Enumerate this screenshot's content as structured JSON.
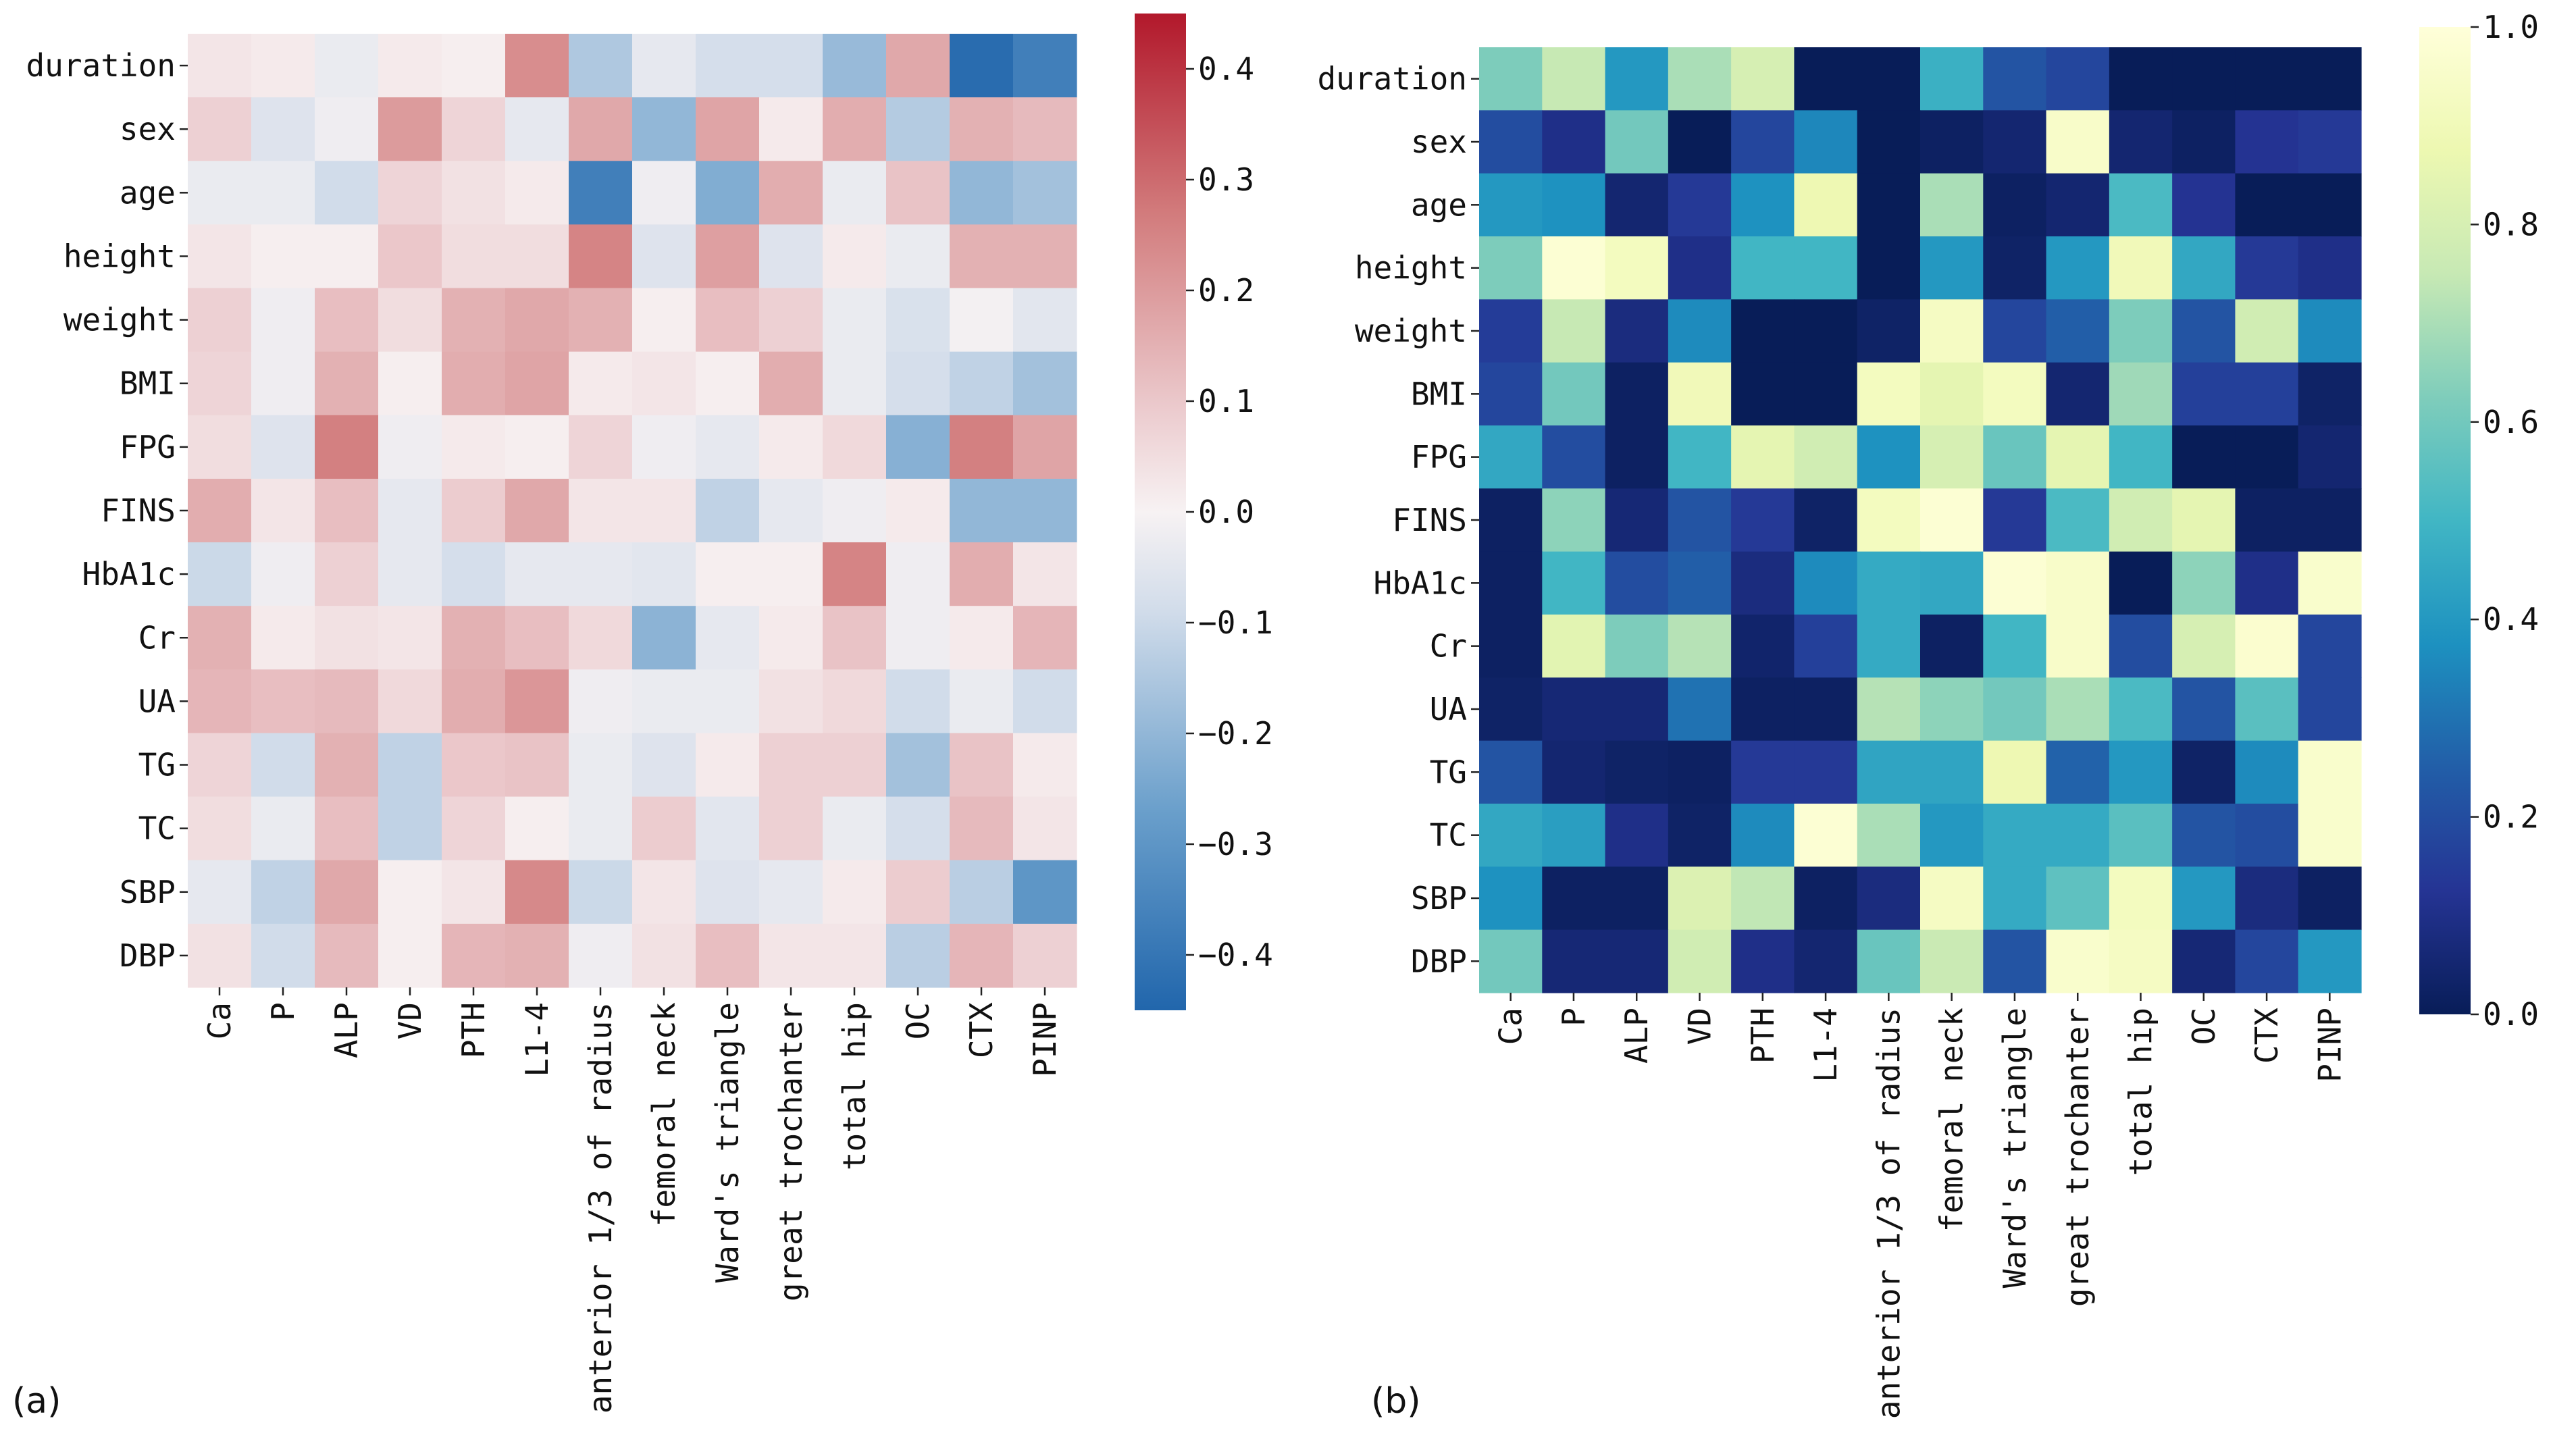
{
  "chart_data": [
    {
      "type": "heatmap",
      "panel_label": "(a)",
      "colormap": "RdBu_r",
      "colorbar": {
        "range": [
          -0.45,
          0.45
        ],
        "ticks": [
          0.4,
          0.3,
          0.2,
          0.1,
          0.0,
          -0.1,
          -0.2,
          -0.3,
          -0.4
        ],
        "tick_labels": [
          "0.4",
          "0.3",
          "0.2",
          "0.1",
          "0.0",
          "−0.1",
          "−0.2",
          "−0.3",
          "−0.4"
        ]
      },
      "rows": [
        "duration",
        "sex",
        "age",
        "height",
        "weight",
        "BMI",
        "FPG",
        "FINS",
        "HbA1c",
        "Cr",
        "UA",
        "TG",
        "TC",
        "SBP",
        "DBP"
      ],
      "cols": [
        "Ca",
        "P",
        "ALP",
        "VD",
        "PTH",
        "L1-4",
        "anterior 1/3 of radius",
        "femoral neck",
        "Ward's triangle",
        "great trochanter",
        "total hip",
        "OC",
        "CTX",
        "PINP"
      ],
      "values": [
        [
          0.03,
          0.02,
          -0.03,
          0.02,
          0.01,
          0.23,
          -0.15,
          -0.04,
          -0.08,
          -0.08,
          -0.19,
          0.17,
          -0.43,
          -0.37
        ],
        [
          0.08,
          -0.06,
          -0.02,
          0.2,
          0.07,
          -0.04,
          0.17,
          -0.2,
          0.18,
          0.02,
          0.16,
          -0.14,
          0.15,
          0.13
        ],
        [
          -0.03,
          -0.03,
          -0.09,
          0.07,
          0.04,
          0.02,
          -0.37,
          -0.02,
          -0.23,
          0.16,
          -0.03,
          0.11,
          -0.2,
          -0.17
        ],
        [
          0.03,
          0.01,
          0.01,
          0.1,
          0.05,
          0.05,
          0.25,
          -0.06,
          0.19,
          -0.06,
          0.02,
          -0.03,
          0.15,
          0.15
        ],
        [
          0.08,
          -0.02,
          0.12,
          0.05,
          0.15,
          0.17,
          0.15,
          0.01,
          0.12,
          0.08,
          -0.03,
          -0.07,
          -0.01,
          -0.05
        ],
        [
          0.07,
          -0.02,
          0.15,
          0.01,
          0.16,
          0.18,
          0.02,
          0.03,
          0.01,
          0.16,
          -0.03,
          -0.08,
          -0.12,
          -0.17
        ],
        [
          0.05,
          -0.06,
          0.26,
          -0.02,
          0.02,
          0.01,
          0.07,
          -0.02,
          -0.04,
          0.02,
          0.06,
          -0.22,
          0.26,
          0.18
        ],
        [
          0.16,
          0.03,
          0.12,
          -0.04,
          0.09,
          0.17,
          0.03,
          0.03,
          -0.12,
          -0.04,
          -0.02,
          0.02,
          -0.2,
          -0.2
        ],
        [
          -0.1,
          -0.02,
          0.08,
          -0.04,
          -0.08,
          -0.04,
          -0.04,
          -0.05,
          0.01,
          0.01,
          0.25,
          -0.02,
          0.16,
          0.03
        ],
        [
          0.15,
          0.02,
          0.04,
          0.03,
          0.15,
          0.12,
          0.06,
          -0.21,
          -0.04,
          0.02,
          0.11,
          -0.02,
          0.02,
          0.14
        ],
        [
          0.14,
          0.12,
          0.13,
          0.06,
          0.16,
          0.21,
          -0.02,
          -0.03,
          -0.03,
          0.04,
          0.06,
          -0.09,
          -0.03,
          -0.09
        ],
        [
          0.07,
          -0.09,
          0.15,
          -0.12,
          0.1,
          0.11,
          -0.03,
          -0.06,
          0.02,
          0.08,
          0.08,
          -0.17,
          0.11,
          0.02
        ],
        [
          0.05,
          -0.03,
          0.12,
          -0.12,
          0.07,
          0.01,
          -0.03,
          0.09,
          -0.05,
          0.08,
          -0.03,
          -0.08,
          0.13,
          0.03
        ],
        [
          -0.04,
          -0.12,
          0.17,
          0.01,
          0.03,
          0.24,
          -0.1,
          0.03,
          -0.06,
          -0.04,
          0.02,
          0.09,
          -0.13,
          -0.3
        ],
        [
          0.04,
          -0.09,
          0.13,
          0.01,
          0.14,
          0.15,
          -0.02,
          0.04,
          0.12,
          0.03,
          0.03,
          -0.13,
          0.14,
          0.08
        ]
      ]
    },
    {
      "type": "heatmap",
      "panel_label": "(b)",
      "colormap": "YlGnBu_r",
      "colorbar": {
        "range": [
          0.0,
          1.0
        ],
        "ticks": [
          1.0,
          0.8,
          0.6,
          0.4,
          0.2,
          0.0
        ],
        "tick_labels": [
          "1.0",
          "0.8",
          "0.6",
          "0.4",
          "0.2",
          "0.0"
        ]
      },
      "rows": [
        "duration",
        "sex",
        "age",
        "height",
        "weight",
        "BMI",
        "FPG",
        "FINS",
        "HbA1c",
        "Cr",
        "UA",
        "TG",
        "TC",
        "SBP",
        "DBP"
      ],
      "cols": [
        "Ca",
        "P",
        "ALP",
        "VD",
        "PTH",
        "L1-4",
        "anterior 1/3 of radius",
        "femoral neck",
        "Ward's triangle",
        "great trochanter",
        "total hip",
        "OC",
        "CTX",
        "PINP"
      ],
      "values": [
        [
          0.62,
          0.75,
          0.4,
          0.7,
          0.8,
          0.0,
          0.0,
          0.48,
          0.22,
          0.18,
          0.0,
          0.0,
          0.0,
          0.0
        ],
        [
          0.2,
          0.1,
          0.6,
          0.0,
          0.18,
          0.35,
          0.0,
          0.02,
          0.05,
          0.95,
          0.05,
          0.02,
          0.12,
          0.14
        ],
        [
          0.4,
          0.38,
          0.05,
          0.14,
          0.38,
          0.88,
          0.0,
          0.7,
          0.02,
          0.05,
          0.52,
          0.12,
          0.0,
          0.0
        ],
        [
          0.62,
          0.98,
          0.92,
          0.1,
          0.5,
          0.5,
          0.0,
          0.4,
          0.03,
          0.4,
          0.9,
          0.45,
          0.14,
          0.1
        ],
        [
          0.15,
          0.75,
          0.08,
          0.36,
          0.0,
          0.0,
          0.03,
          0.93,
          0.18,
          0.25,
          0.62,
          0.22,
          0.78,
          0.36
        ],
        [
          0.18,
          0.6,
          0.02,
          0.9,
          0.0,
          0.0,
          0.92,
          0.85,
          0.92,
          0.05,
          0.68,
          0.16,
          0.16,
          0.03
        ],
        [
          0.45,
          0.2,
          0.02,
          0.5,
          0.85,
          0.78,
          0.38,
          0.8,
          0.58,
          0.85,
          0.5,
          0.0,
          0.0,
          0.05
        ],
        [
          0.02,
          0.65,
          0.06,
          0.22,
          0.14,
          0.03,
          0.92,
          0.98,
          0.14,
          0.52,
          0.78,
          0.85,
          0.02,
          0.02
        ],
        [
          0.02,
          0.5,
          0.2,
          0.25,
          0.08,
          0.36,
          0.46,
          0.45,
          0.98,
          0.95,
          0.0,
          0.65,
          0.1,
          0.96
        ],
        [
          0.02,
          0.84,
          0.62,
          0.72,
          0.04,
          0.16,
          0.46,
          0.02,
          0.5,
          0.95,
          0.2,
          0.8,
          0.97,
          0.18
        ],
        [
          0.03,
          0.06,
          0.06,
          0.3,
          0.02,
          0.02,
          0.72,
          0.65,
          0.6,
          0.7,
          0.52,
          0.22,
          0.55,
          0.18
        ],
        [
          0.22,
          0.05,
          0.03,
          0.02,
          0.14,
          0.14,
          0.44,
          0.44,
          0.88,
          0.26,
          0.4,
          0.03,
          0.36,
          0.96
        ],
        [
          0.45,
          0.42,
          0.1,
          0.03,
          0.36,
          0.98,
          0.7,
          0.4,
          0.46,
          0.46,
          0.55,
          0.22,
          0.2,
          0.96
        ],
        [
          0.38,
          0.02,
          0.02,
          0.82,
          0.74,
          0.02,
          0.08,
          0.93,
          0.46,
          0.56,
          0.92,
          0.4,
          0.08,
          0.02
        ],
        [
          0.6,
          0.06,
          0.06,
          0.78,
          0.1,
          0.05,
          0.58,
          0.76,
          0.22,
          0.96,
          0.93,
          0.06,
          0.18,
          0.4
        ]
      ]
    }
  ]
}
